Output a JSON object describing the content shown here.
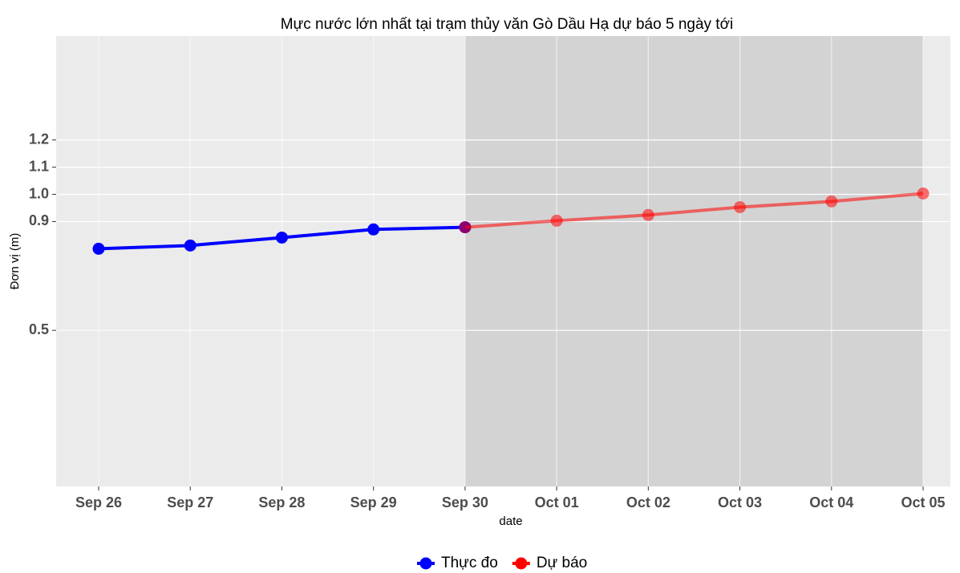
{
  "chart_data": {
    "type": "line",
    "title": "Mực nước lớn nhất tại trạm thủy văn Gò Dầu Hạ dự báo 5 ngày tới",
    "x_label": "date",
    "y_label": "Đơn vị (m)",
    "categories": [
      "Sep 26",
      "Sep 27",
      "Sep 28",
      "Sep 29",
      "Sep 30",
      "Oct 01",
      "Oct 02",
      "Oct 03",
      "Oct 04",
      "Oct 05"
    ],
    "series": [
      {
        "name": "Thực đo",
        "color": "#0000ff",
        "values": [
          0.8,
          0.812,
          0.841,
          0.871,
          0.879,
          null,
          null,
          null,
          null,
          null
        ]
      },
      {
        "name": "Dự báo",
        "color": "#ff0000",
        "values": [
          null,
          null,
          null,
          null,
          0.879,
          0.903,
          0.924,
          0.953,
          0.974,
          1.003
        ]
      }
    ],
    "ylim": [
      -0.074,
      1.582
    ],
    "yticks": [
      0.5,
      0.9,
      {
        "value": 1.0,
        "label": "1.0"
      },
      1.1,
      1.2
    ],
    "grid": true,
    "legend": "bottom"
  }
}
